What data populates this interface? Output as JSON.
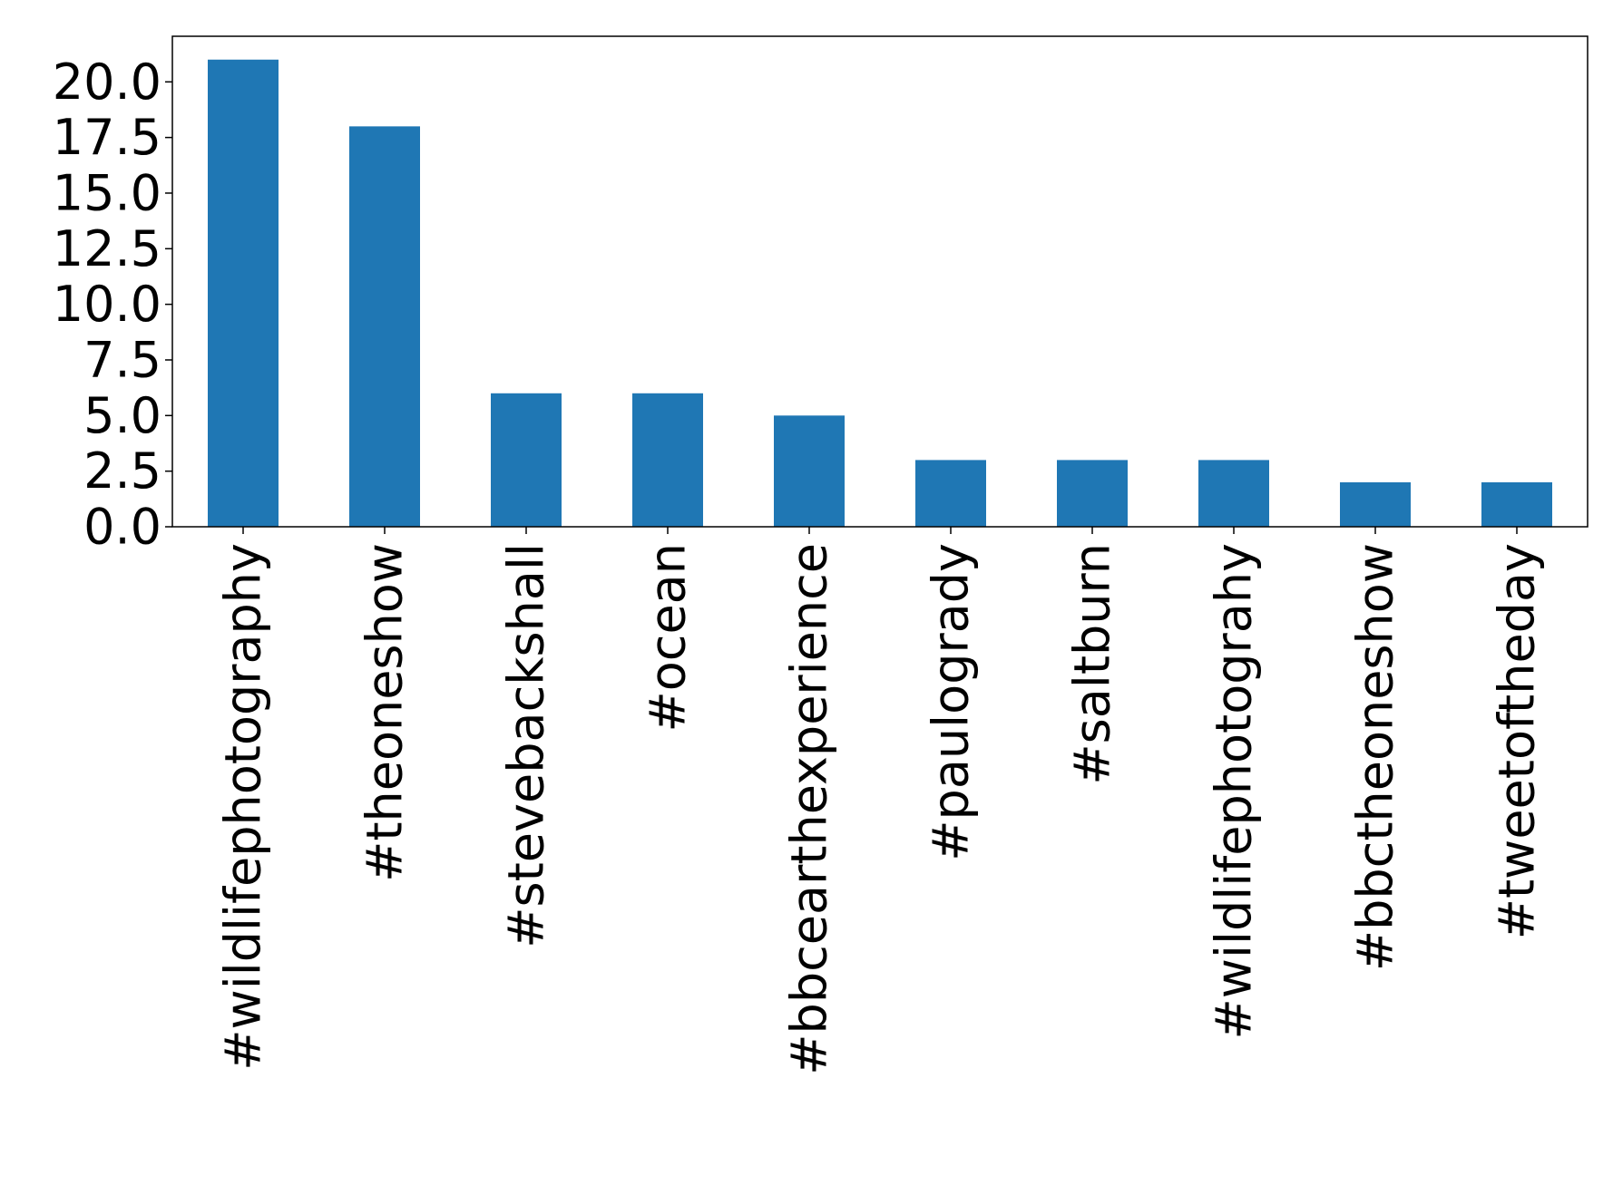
{
  "chart_data": {
    "type": "bar",
    "title": "",
    "xlabel": "",
    "ylabel": "",
    "categories": [
      "#wildlifephotography",
      "#theoneshow",
      "#stevebackshall",
      "#ocean",
      "#bbcearthexperience",
      "#paulogrady",
      "#saltburn",
      "#wildlifephotograhy",
      "#bbctheoneshow",
      "#tweetoftheday"
    ],
    "values": [
      21,
      18,
      6,
      6,
      5,
      3,
      3,
      3,
      2,
      2
    ],
    "ylim": [
      0,
      22.05
    ],
    "yticks": [
      0,
      2.5,
      5,
      7.5,
      10,
      12.5,
      15,
      17.5,
      20
    ],
    "ytick_labels": [
      "0.0",
      "2.5",
      "5.0",
      "7.5",
      "10.0",
      "12.5",
      "15.0",
      "17.5",
      "20.0"
    ],
    "bar_color": "#1f77b4",
    "grid": false,
    "legend": "none"
  }
}
